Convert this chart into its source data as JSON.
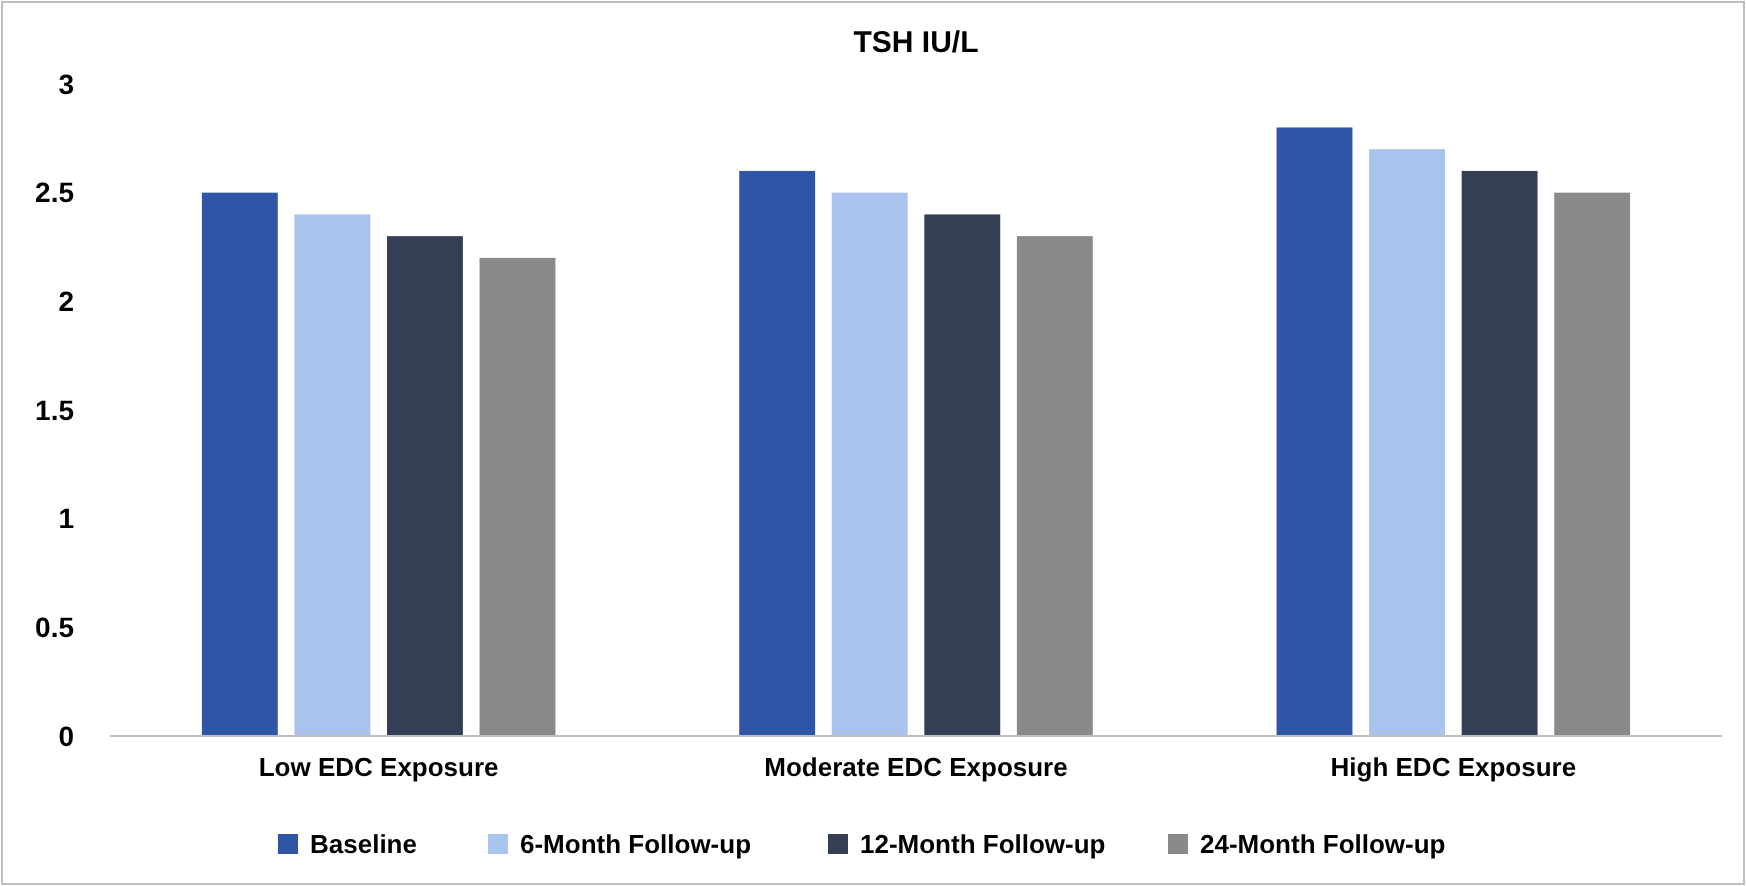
{
  "chart_data": {
    "type": "bar",
    "title": "TSH IU/L",
    "categories": [
      "Low EDC Exposure",
      "Moderate EDC Exposure",
      "High EDC Exposure"
    ],
    "series": [
      {
        "name": "Baseline",
        "color": "#2f56a6",
        "values": [
          2.5,
          2.6,
          2.8
        ]
      },
      {
        "name": "6-Month Follow-up",
        "color": "#a9c3ec",
        "values": [
          2.4,
          2.5,
          2.7
        ]
      },
      {
        "name": "12-Month Follow-up",
        "color": "#343f56",
        "values": [
          2.3,
          2.4,
          2.6
        ]
      },
      {
        "name": "24-Month Follow-up",
        "color": "#8a8a8a",
        "values": [
          2.2,
          2.3,
          2.5
        ]
      }
    ],
    "ylim": [
      0,
      3
    ],
    "yticks": [
      0,
      {
        "value": 0.5,
        "label": "0.5"
      },
      1,
      {
        "value": 1.5,
        "label": "1.5"
      },
      2,
      {
        "value": 2.5,
        "label": "2.5"
      },
      3
    ],
    "grid": false,
    "legend": "bottom"
  }
}
